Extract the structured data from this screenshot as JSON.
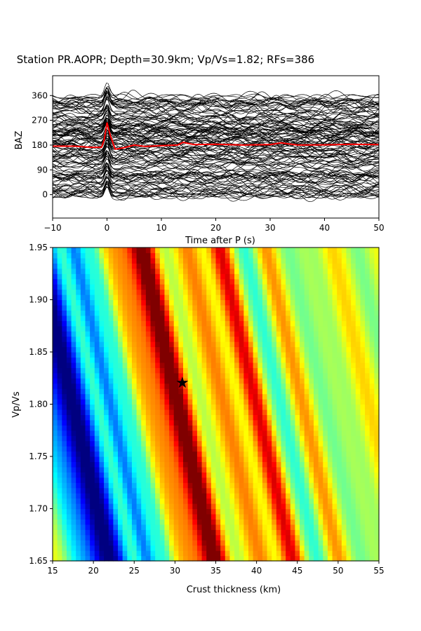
{
  "figure": {
    "title": "Station PR.AOPR; Depth=30.9km; Vp/Vs=1.82; RFs=386"
  },
  "chart_data": [
    {
      "type": "line",
      "name": "receiver-functions-by-baz",
      "xlabel": "Time after P (s)",
      "ylabel": "BAZ",
      "xlim": [
        -10,
        50
      ],
      "ylim": [
        -85,
        432
      ],
      "xticks": [
        -10,
        0,
        10,
        20,
        30,
        40,
        50
      ],
      "yticks": [
        0,
        90,
        180,
        270,
        360
      ],
      "trace_count": 386,
      "trace_color": "#000000",
      "stack_color": "#ff0000",
      "stack_trace": {
        "x": [
          -10,
          -6,
          -3,
          -1,
          -0.5,
          0,
          0.6,
          1.5,
          3,
          5,
          7,
          10,
          13,
          14,
          16,
          20,
          25,
          30,
          32,
          35,
          40,
          45,
          50
        ],
        "y": [
          176,
          176,
          172,
          172,
          200,
          262,
          215,
          165,
          170,
          180,
          175,
          178,
          180,
          190,
          182,
          183,
          180,
          182,
          188,
          180,
          181,
          183,
          182
        ]
      }
    },
    {
      "type": "heatmap",
      "name": "h-k-stacking",
      "xlabel": "Crust thickness (km)",
      "ylabel": "Vp/Vs",
      "xlim": [
        15,
        55
      ],
      "ylim": [
        1.65,
        1.95
      ],
      "xticks": [
        15,
        20,
        25,
        30,
        35,
        40,
        45,
        50,
        55
      ],
      "yticks": [
        1.65,
        1.7,
        1.75,
        1.8,
        1.85,
        1.9,
        1.95
      ],
      "colormap": "jet",
      "best_fit": {
        "x": 30.9,
        "y": 1.82,
        "marker": "star"
      }
    }
  ]
}
